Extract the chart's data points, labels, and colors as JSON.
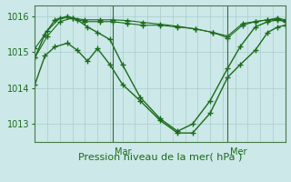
{
  "bg_color": "#cce8e8",
  "grid_color": "#aacccc",
  "line_color": "#1a6b1a",
  "marker_color": "#1a6b1a",
  "xlabel": "Pression niveau de la mer( hPa )",
  "xlabel_fontsize": 8,
  "ylabel_fontsize": 7,
  "tick_fontsize": 7,
  "ylim": [
    1012.5,
    1016.3
  ],
  "yticks": [
    1013,
    1014,
    1015,
    1016
  ],
  "vline_positions": [
    0.31,
    0.77
  ],
  "vline_labels": [
    "Mar",
    "Mer"
  ],
  "series": [
    {
      "x": [
        0.0,
        0.04,
        0.08,
        0.13,
        0.17,
        0.21,
        0.25,
        0.3,
        0.35,
        0.42,
        0.5,
        0.57,
        0.63,
        0.7,
        0.77,
        0.82,
        0.88,
        0.93,
        0.97,
        1.0
      ],
      "y": [
        1014.1,
        1014.9,
        1015.15,
        1015.25,
        1015.05,
        1014.75,
        1015.1,
        1014.65,
        1014.1,
        1013.65,
        1013.1,
        1012.75,
        1012.75,
        1013.3,
        1014.3,
        1014.65,
        1015.05,
        1015.55,
        1015.7,
        1015.75
      ]
    },
    {
      "x": [
        0.0,
        0.04,
        0.08,
        0.13,
        0.17,
        0.21,
        0.25,
        0.3,
        0.35,
        0.42,
        0.5,
        0.57,
        0.63,
        0.7,
        0.77,
        0.82,
        0.88,
        0.93,
        0.97,
        1.0
      ],
      "y": [
        1014.85,
        1015.5,
        1015.9,
        1016.0,
        1015.9,
        1015.7,
        1015.55,
        1015.35,
        1014.65,
        1013.75,
        1013.15,
        1012.8,
        1013.0,
        1013.65,
        1014.55,
        1015.15,
        1015.7,
        1015.85,
        1015.9,
        1015.85
      ]
    },
    {
      "x": [
        0.0,
        0.05,
        0.1,
        0.15,
        0.2,
        0.26,
        0.31,
        0.37,
        0.43,
        0.5,
        0.57,
        0.64,
        0.71,
        0.77,
        0.83,
        0.88,
        0.93,
        0.97,
        1.0
      ],
      "y": [
        1015.1,
        1015.6,
        1015.95,
        1015.95,
        1015.85,
        1015.85,
        1015.85,
        1015.8,
        1015.75,
        1015.75,
        1015.7,
        1015.65,
        1015.55,
        1015.45,
        1015.8,
        1015.85,
        1015.9,
        1015.95,
        1015.9
      ]
    },
    {
      "x": [
        0.0,
        0.05,
        0.1,
        0.15,
        0.2,
        0.26,
        0.31,
        0.37,
        0.43,
        0.5,
        0.57,
        0.64,
        0.71,
        0.77,
        0.83,
        0.88,
        0.93,
        0.97,
        1.0
      ],
      "y": [
        1014.85,
        1015.45,
        1015.85,
        1015.95,
        1015.9,
        1015.9,
        1015.9,
        1015.88,
        1015.83,
        1015.78,
        1015.72,
        1015.65,
        1015.55,
        1015.4,
        1015.75,
        1015.85,
        1015.9,
        1015.92,
        1015.88
      ]
    }
  ]
}
